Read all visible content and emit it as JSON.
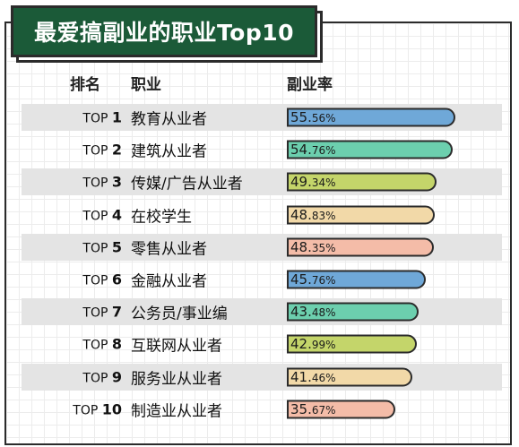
{
  "title": "最爱搞副业的职业Top10",
  "headers": {
    "rank": "排名",
    "job": "职业",
    "rate": "副业率"
  },
  "chart_data": {
    "type": "bar",
    "title": "最爱搞副业的职业Top10",
    "xlabel": "",
    "ylabel": "副业率",
    "rows": [
      {
        "rank_prefix": "TOP",
        "rank_num": "1",
        "job": "教育从业者",
        "value": 55.56,
        "int": "55.",
        "dec": "56%",
        "color": "#6fa8d8"
      },
      {
        "rank_prefix": "TOP",
        "rank_num": "2",
        "job": "建筑从业者",
        "value": 54.76,
        "int": "54.",
        "dec": "76%",
        "color": "#6ccfae"
      },
      {
        "rank_prefix": "TOP",
        "rank_num": "3",
        "job": "传媒/广告从业者",
        "value": 49.34,
        "int": "49.",
        "dec": "34%",
        "color": "#c4d56a"
      },
      {
        "rank_prefix": "TOP",
        "rank_num": "4",
        "job": "在校学生",
        "value": 48.83,
        "int": "48.",
        "dec": "83%",
        "color": "#f2d9a8"
      },
      {
        "rank_prefix": "TOP",
        "rank_num": "5",
        "job": "零售从业者",
        "value": 48.35,
        "int": "48.",
        "dec": "35%",
        "color": "#f4bca8"
      },
      {
        "rank_prefix": "TOP",
        "rank_num": "6",
        "job": "金融从业者",
        "value": 45.76,
        "int": "45.",
        "dec": "76%",
        "color": "#6fa8d8"
      },
      {
        "rank_prefix": "TOP",
        "rank_num": "7",
        "job": "公务员/事业编",
        "value": 43.48,
        "int": "43.",
        "dec": "48%",
        "color": "#6ccfae"
      },
      {
        "rank_prefix": "TOP",
        "rank_num": "8",
        "job": "互联网从业者",
        "value": 42.99,
        "int": "42.",
        "dec": "99%",
        "color": "#c4d56a"
      },
      {
        "rank_prefix": "TOP",
        "rank_num": "9",
        "job": "服务业从业者",
        "value": 41.46,
        "int": "41.",
        "dec": "46%",
        "color": "#f2d9a8"
      },
      {
        "rank_prefix": "TOP",
        "rank_num": "10",
        "job": "制造业从业者",
        "value": 35.67,
        "int": "35.",
        "dec": "67%",
        "color": "#f4bca8"
      }
    ]
  }
}
